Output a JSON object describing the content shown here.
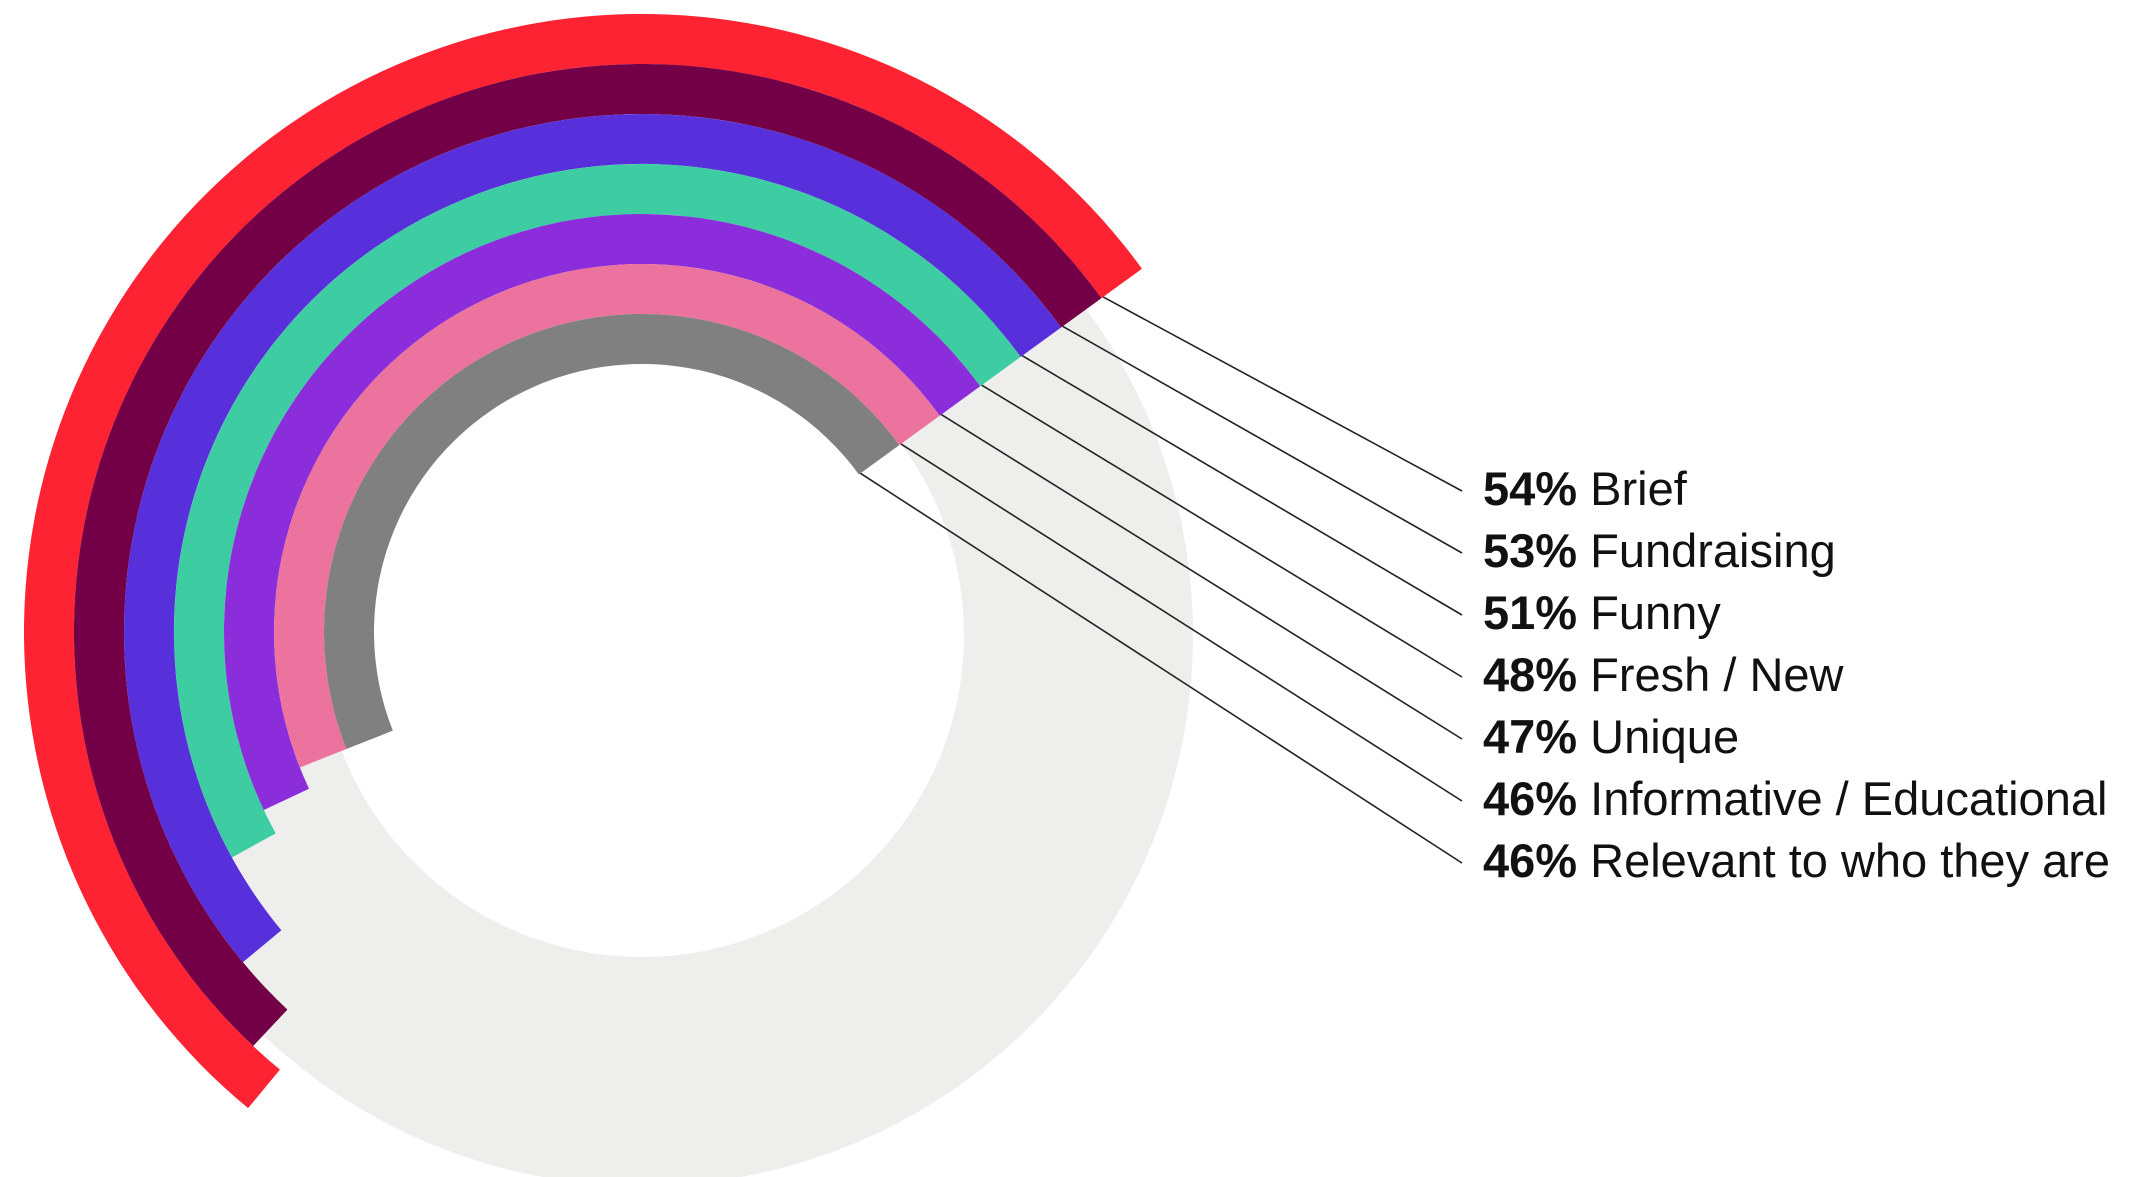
{
  "chart_data": {
    "type": "radial-bar",
    "value_suffix": "%",
    "value_max": 100,
    "track_color": "#eeefed",
    "series": [
      {
        "label": "Brief",
        "value": 54,
        "color": "#fe2332"
      },
      {
        "label": "Fundraising",
        "value": 53,
        "color": "#730046"
      },
      {
        "label": "Funny",
        "value": 51,
        "color": "#5730dc"
      },
      {
        "label": "Fresh / New",
        "value": 48,
        "color": "#3ecca2"
      },
      {
        "label": "Unique",
        "value": 47,
        "color": "#8c2ddc"
      },
      {
        "label": "Informative / Educational",
        "value": 46,
        "color": "#eb739e"
      },
      {
        "label": "Relevant to who they are",
        "value": 46,
        "color": "#808080"
      }
    ]
  }
}
